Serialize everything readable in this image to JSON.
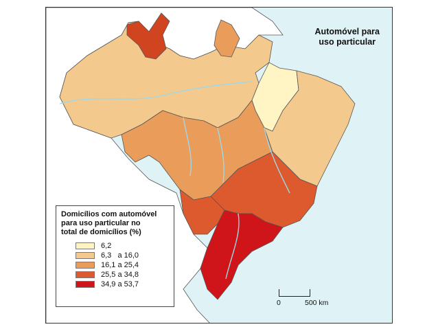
{
  "map": {
    "title_line1": "Automóvel para",
    "title_line2": "uso particular",
    "colors": {
      "ocean": "#dff3f6",
      "land": "#ffffff",
      "border": "#555555",
      "river": "#9fd8e6"
    }
  },
  "legend": {
    "title_line1": "Domicílios com automóvel",
    "title_line2": "para uso particular no",
    "title_line3": "total de domicílios (%)",
    "classes": [
      {
        "label": "6,2",
        "color": "#fff4c4"
      },
      {
        "label": "6,3   a 16,0",
        "color": "#f3c98e"
      },
      {
        "label": "16,1 a 25,4",
        "color": "#ea9c5a"
      },
      {
        "label": "25,5 a 34,8",
        "color": "#dd5a2e"
      },
      {
        "label": "34,9 a 53,7",
        "color": "#d0151a"
      }
    ]
  },
  "scale": {
    "zero": "0",
    "end": "500 km"
  }
}
